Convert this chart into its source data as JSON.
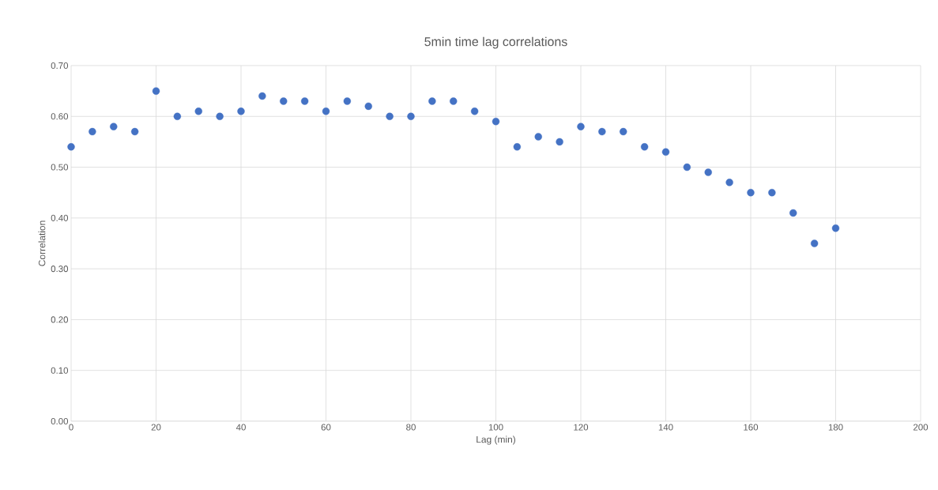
{
  "chart_data": {
    "type": "scatter",
    "title": "5min time lag correlations",
    "xlabel": "Lag (min)",
    "ylabel": "Correlation",
    "x": [
      0,
      5,
      10,
      15,
      20,
      25,
      30,
      35,
      40,
      45,
      50,
      55,
      60,
      65,
      70,
      75,
      80,
      85,
      90,
      95,
      100,
      105,
      110,
      115,
      120,
      125,
      130,
      135,
      140,
      145,
      150,
      155,
      160,
      165,
      170,
      175,
      180
    ],
    "values": [
      0.54,
      0.57,
      0.58,
      0.57,
      0.65,
      0.6,
      0.61,
      0.6,
      0.61,
      0.64,
      0.63,
      0.63,
      0.61,
      0.63,
      0.62,
      0.6,
      0.6,
      0.63,
      0.63,
      0.61,
      0.59,
      0.54,
      0.56,
      0.55,
      0.58,
      0.57,
      0.57,
      0.54,
      0.53,
      0.5,
      0.49,
      0.47,
      0.45,
      0.45,
      0.41,
      0.35,
      0.38
    ],
    "color": "#4472c4",
    "marker": "circle",
    "grid": true,
    "xlim": [
      0,
      200
    ],
    "xticks": [
      0,
      20,
      40,
      60,
      80,
      100,
      120,
      140,
      160,
      180,
      200
    ],
    "ylim": [
      0,
      0.7
    ],
    "yticks": [
      {
        "value": 0,
        "label": "0.00"
      },
      {
        "value": 0.1,
        "label": "0.10"
      },
      {
        "value": 0.2,
        "label": "0.20"
      },
      {
        "value": 0.3,
        "label": "0.30"
      },
      {
        "value": 0.4,
        "label": "0.40"
      },
      {
        "value": 0.5,
        "label": "0.50"
      },
      {
        "value": 0.6,
        "label": "0.60"
      },
      {
        "value": 0.7,
        "label": "0.70"
      }
    ]
  }
}
